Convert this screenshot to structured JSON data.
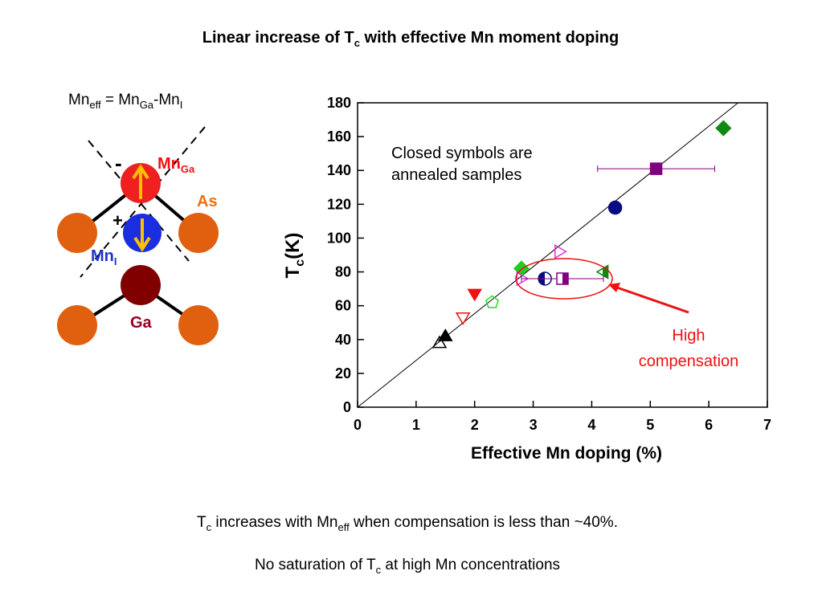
{
  "title": {
    "pre": "Linear increase of T",
    "sub": "c",
    "post": " with effective Mn moment doping"
  },
  "diagram": {
    "formula": [
      "Mn",
      "eff",
      " = Mn",
      "Ga",
      "-Mn",
      "I"
    ],
    "mn_ga": [
      "Mn",
      "Ga"
    ],
    "as": "As",
    "mn_i": [
      "Mn",
      "I"
    ],
    "ga": "Ga",
    "minus": "-",
    "plus": "+"
  },
  "chart_data": {
    "type": "scatter",
    "xlabel": "Effective Mn doping (%)",
    "ylabel": [
      "T",
      "c",
      "(K)"
    ],
    "xlim": [
      0,
      7
    ],
    "xticks": [
      0,
      1,
      2,
      3,
      4,
      5,
      6,
      7
    ],
    "ylim": [
      0,
      180
    ],
    "yticks": [
      0,
      20,
      40,
      60,
      80,
      100,
      120,
      140,
      160,
      180
    ],
    "annotation": [
      "Closed symbols are",
      "annealed samples"
    ],
    "callout": [
      "High",
      "compensation"
    ],
    "fit_line": {
      "x": [
        0,
        6.5
      ],
      "y": [
        0,
        180
      ]
    },
    "points": [
      {
        "x": 6.25,
        "y": 165,
        "marker": "diamond",
        "color": "#118811",
        "fill": "full"
      },
      {
        "x": 5.1,
        "y": 141,
        "xerr": 1.0,
        "marker": "square",
        "color": "#800080",
        "fill": "full"
      },
      {
        "x": 4.4,
        "y": 118,
        "marker": "circle",
        "color": "#0a0a80",
        "fill": "full"
      },
      {
        "x": 3.45,
        "y": 92,
        "marker": "triangle-right",
        "color": "#dd33dd",
        "fill": "open"
      },
      {
        "x": 4.2,
        "y": 80,
        "marker": "triangle-left",
        "color": "#118811",
        "fill": "right-half"
      },
      {
        "x": 2.8,
        "y": 82,
        "marker": "diamond",
        "color": "#22cc22",
        "fill": "full"
      },
      {
        "x": 2.8,
        "y": 76,
        "marker": "triangle-right",
        "color": "#dd33dd",
        "fill": "open"
      },
      {
        "x": 3.2,
        "y": 76,
        "marker": "circle",
        "color": "#0a0a80",
        "fill": "left-half"
      },
      {
        "x": 3.5,
        "y": 76,
        "xerr": 0.7,
        "marker": "square",
        "color": "#800080",
        "fill": "right-half"
      },
      {
        "x": 2.3,
        "y": 62,
        "marker": "pentagon",
        "color": "#22dd22",
        "fill": "open"
      },
      {
        "x": 2.0,
        "y": 67,
        "marker": "triangle-down",
        "color": "#ee1111",
        "fill": "full"
      },
      {
        "x": 1.8,
        "y": 53,
        "marker": "triangle-down",
        "color": "#ee1111",
        "fill": "open"
      },
      {
        "x": 1.5,
        "y": 42,
        "marker": "triangle-up",
        "color": "#000000",
        "fill": "full"
      },
      {
        "x": 1.4,
        "y": 38,
        "marker": "triangle-up",
        "color": "#000000",
        "fill": "open"
      }
    ]
  },
  "footer": {
    "line1": [
      "T",
      "c",
      " increases with Mn",
      "eff",
      " when compensation is less than ~40%."
    ],
    "line2": [
      "No saturation of T",
      "c",
      " at high Mn concentrations"
    ]
  }
}
